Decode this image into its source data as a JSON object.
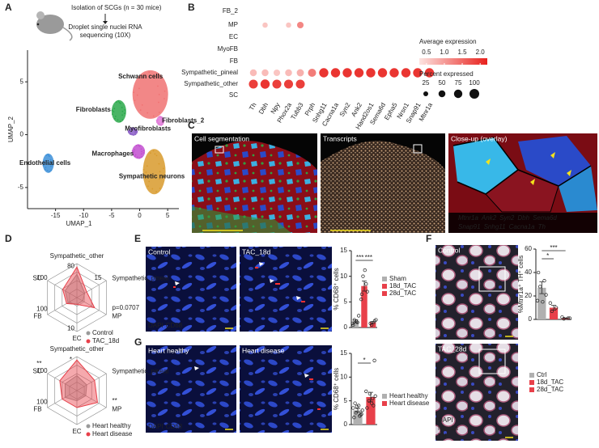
{
  "panels": {
    "letters": [
      "A",
      "B",
      "C",
      "D",
      "E",
      "F",
      "G"
    ],
    "A": {
      "header": [
        "Isolation of SCGs (n = 30 mice)",
        "Droplet single nuclei RNA",
        "sequencing (10X)"
      ]
    },
    "C": {
      "titles": [
        "Cell segmentation",
        "Transcripts",
        "Close-up (overlay)"
      ],
      "legend": [
        [
          {
            "text": "Mtnr1a",
            "color": "#f4e21c"
          },
          {
            "text": "Ank2",
            "color": "#6fa8ff"
          },
          {
            "text": "Syn2",
            "color": "#3a7a3a"
          },
          {
            "text": "Dbh",
            "color": "#d04ad0"
          },
          {
            "text": "Sema6d",
            "color": "#9fe04a"
          }
        ],
        [
          {
            "text": "Snap91",
            "color": "#f0b020"
          },
          {
            "text": "Snhg11",
            "color": "#c8e040"
          },
          {
            "text": "Cacna1a",
            "color": "#40d0e8"
          },
          {
            "text": "Th",
            "color": "#ff3030"
          }
        ]
      ]
    },
    "E": {
      "images": [
        "Control",
        "TAC_18d"
      ],
      "stains": [
        {
          "text": "DAPI",
          "color": "#7a8ae0"
        },
        {
          "text": "CD68",
          "color": "#ff3a3a"
        }
      ]
    },
    "F": {
      "images": [
        "Control",
        "TAC_28d"
      ],
      "stains": [
        {
          "text": "DAPI",
          "color": "#7a8ae0"
        },
        {
          "text": "Mtnr1a",
          "color": "#ff3a3a"
        },
        {
          "text": "TH",
          "color": "#ffffff"
        }
      ]
    },
    "G": {
      "images": [
        "Heart healthy",
        "Heart disease"
      ],
      "stains": [
        {
          "text": "DAPI",
          "color": "#7a8ae0"
        },
        {
          "text": "CD68",
          "color": "#ff3a3a"
        }
      ]
    }
  },
  "chart_data": [
    {
      "type": "scatter",
      "xlabel": "UMAP_1",
      "ylabel": "UMAP_2",
      "xlim": [
        -20,
        7
      ],
      "ylim": [
        -7,
        8
      ],
      "xticks": [
        -15,
        -10,
        -5,
        0,
        5
      ],
      "yticks": [
        -5,
        0,
        5
      ],
      "series": [
        {
          "name": "Schwann cells",
          "color": "#f07272",
          "x": [
            1.9
          ],
          "values": [
            3.8
          ]
        },
        {
          "name": "Fibroblasts",
          "color": "#2aa84a",
          "x": [
            -3.7
          ],
          "values": [
            2.2
          ]
        },
        {
          "name": "Fibroblasts_2",
          "color": "#e07ad8",
          "x": [
            3.7
          ],
          "values": [
            1.3
          ]
        },
        {
          "name": "Myofibroblasts",
          "color": "#8b5fc7",
          "x": [
            -1.2
          ],
          "values": [
            0.3
          ]
        },
        {
          "name": "Macrophages",
          "color": "#c24fd0",
          "x": [
            -0.2
          ],
          "values": [
            -1.6
          ]
        },
        {
          "name": "Endothelial cells",
          "color": "#3c8fd8",
          "x": [
            -16.3
          ],
          "values": [
            -2.7
          ]
        },
        {
          "name": "Sympathetic neurons",
          "color": "#d89a2c",
          "x": [
            2.6
          ],
          "values": [
            -3.5
          ]
        }
      ]
    },
    {
      "type": "dot",
      "rows": [
        "FB_2",
        "MP",
        "EC",
        "MyoFB",
        "FB",
        "Sympathetic_pineal",
        "Sympathetic_other",
        "SC"
      ],
      "row_colors": [
        "#222222",
        "#222222",
        "#222222",
        "#222222",
        "#222222",
        "#5aa02c",
        "#c8961e",
        "#222222"
      ],
      "genes": [
        "Th",
        "Dbh",
        "Npy",
        "Phox2a",
        "Tubb3",
        "Prph",
        "Snhg11",
        "Cacna1a",
        "Syn2",
        "Ank2",
        "Hand2os1",
        "Sema6d",
        "Epha5",
        "Nrsn1",
        "Snap91",
        "Mtnr1a"
      ],
      "expression": [
        [
          null,
          null,
          null,
          null,
          null,
          null,
          null,
          null,
          null,
          null,
          null,
          null,
          null,
          null,
          null,
          null
        ],
        [
          null,
          0.6,
          null,
          0.6,
          1.2,
          null,
          null,
          null,
          null,
          null,
          null,
          null,
          null,
          null,
          null,
          null
        ],
        [
          null,
          null,
          null,
          null,
          null,
          null,
          null,
          null,
          null,
          null,
          null,
          null,
          null,
          null,
          null,
          null
        ],
        [
          null,
          null,
          null,
          null,
          null,
          null,
          null,
          null,
          null,
          null,
          null,
          null,
          null,
          null,
          null,
          null
        ],
        [
          null,
          null,
          null,
          null,
          null,
          null,
          null,
          null,
          null,
          null,
          null,
          null,
          null,
          null,
          null,
          null
        ],
        [
          0.7,
          0.7,
          0.6,
          0.7,
          0.8,
          1.3,
          2.0,
          2.0,
          2.0,
          2.0,
          2.0,
          2.0,
          2.0,
          2.0,
          2.0,
          2.0
        ],
        [
          1.9,
          2.0,
          1.9,
          1.9,
          1.9,
          null,
          null,
          null,
          null,
          null,
          null,
          null,
          null,
          null,
          null,
          null
        ],
        [
          null,
          null,
          null,
          null,
          null,
          null,
          null,
          null,
          null,
          null,
          null,
          null,
          null,
          null,
          null,
          null
        ]
      ],
      "percent": [
        [
          null,
          null,
          null,
          null,
          null,
          null,
          null,
          null,
          null,
          null,
          null,
          null,
          null,
          null,
          null,
          null
        ],
        [
          null,
          30,
          null,
          30,
          45,
          null,
          null,
          null,
          null,
          null,
          null,
          null,
          null,
          null,
          null,
          null
        ],
        [
          null,
          null,
          null,
          null,
          null,
          null,
          null,
          null,
          null,
          null,
          null,
          null,
          null,
          null,
          null,
          null
        ],
        [
          null,
          null,
          null,
          null,
          null,
          null,
          null,
          null,
          null,
          null,
          null,
          null,
          null,
          null,
          null,
          null
        ],
        [
          null,
          null,
          null,
          null,
          null,
          null,
          null,
          null,
          null,
          null,
          null,
          null,
          null,
          null,
          null,
          null
        ],
        [
          50,
          50,
          45,
          50,
          55,
          70,
          90,
          90,
          90,
          90,
          90,
          90,
          90,
          90,
          90,
          90
        ],
        [
          85,
          90,
          85,
          85,
          85,
          null,
          null,
          null,
          null,
          null,
          null,
          null,
          null,
          null,
          null,
          null
        ],
        [
          null,
          null,
          null,
          null,
          null,
          null,
          null,
          null,
          null,
          null,
          null,
          null,
          null,
          null,
          null,
          null
        ]
      ],
      "color_title": "Average expression",
      "color_lim": [
        0.3,
        2.2
      ],
      "color_range": [
        "#fde4e1",
        "#e8201c"
      ],
      "color_ticks": [
        0.5,
        {
          "value": 1,
          "label": "1.0"
        },
        1.5,
        {
          "value": 2,
          "label": "2.0"
        }
      ],
      "size_title": "Percent expressed",
      "size_ticks": [
        25,
        50,
        75,
        100
      ]
    },
    {
      "type": "radar",
      "axes": [
        "Sympathetic_other",
        "Sympathetic_pineal",
        "MP",
        "EC",
        "FB",
        "SC"
      ],
      "axis_max": [
        80,
        15,
        10,
        10,
        100,
        100
      ],
      "show_max": [
        true,
        true,
        false,
        true,
        true,
        true
      ],
      "series": [
        {
          "name": "Control",
          "color": "#9a9a9a",
          "values": [
            55,
            4,
            2,
            2,
            30,
            40
          ]
        },
        {
          "name": "TAC_18d",
          "color": "#e8404a",
          "values": [
            72,
            5,
            6,
            2,
            35,
            48
          ]
        }
      ],
      "annotations": [
        {
          "text": "p=0.0707",
          "axis": 2
        }
      ]
    },
    {
      "type": "radar",
      "axes": [
        "Sympathetic_other",
        "Sympathetic_pineal",
        "MP",
        "EC",
        "FB",
        "SC"
      ],
      "axis_max": [
        50,
        15,
        10,
        10,
        100,
        100
      ],
      "show_max": [
        false,
        false,
        false,
        false,
        true,
        true
      ],
      "series": [
        {
          "name": "Heart healthy",
          "color": "#9a9a9a",
          "values": [
            22,
            5,
            3,
            3,
            40,
            40
          ]
        },
        {
          "name": "Heart disease",
          "color": "#e8404a",
          "values": [
            45,
            9,
            7,
            5,
            50,
            58
          ]
        }
      ],
      "annotations": [
        {
          "text": "*",
          "axis": 0
        },
        {
          "text": "**",
          "axis": 5
        },
        {
          "text": "**",
          "axis": 2
        }
      ]
    },
    {
      "type": "bar",
      "ylabel": "% CD68⁺ cells",
      "ylim": [
        0,
        15
      ],
      "yticks": [
        0,
        5,
        10,
        15
      ],
      "categories": [
        "Sham",
        "18d_TAC",
        "28d_TAC"
      ],
      "colors": [
        "#b0b0b0",
        "#e8404a",
        "#e8404a"
      ],
      "values": [
        1.2,
        8.1,
        1.0
      ],
      "errors": [
        0.3,
        1.0,
        0.2
      ],
      "points": [
        [
          0.5,
          1.0,
          1.5,
          2.3,
          0.8,
          1.2
        ],
        [
          6.5,
          8.5,
          10.0,
          7.0,
          5.5,
          11.2
        ],
        [
          0.8,
          1.3,
          0.5,
          1.5
        ]
      ],
      "significance": [
        {
          "label": "***",
          "pair": [
            0,
            1
          ]
        },
        {
          "label": "***",
          "pair": [
            1,
            2
          ]
        }
      ]
    },
    {
      "type": "bar",
      "ylabel": "%Mtnr1a⁺ TH⁺ cells",
      "ylim": [
        0,
        60
      ],
      "yticks": [
        0,
        20,
        40,
        60
      ],
      "categories": [
        "Ctrl",
        "18d_TAC",
        "28d_TAC"
      ],
      "colors": [
        "#b0b0b0",
        "#e8404a",
        "#e8404a"
      ],
      "values": [
        27,
        10,
        1
      ],
      "errors": [
        5,
        2,
        0.3
      ],
      "points": [
        [
          40,
          33,
          28,
          21,
          16,
          15
        ],
        [
          14,
          10,
          7
        ],
        [
          2,
          1,
          0.5,
          1
        ]
      ],
      "significance": [
        {
          "label": "*",
          "pair": [
            0,
            1
          ]
        },
        {
          "label": "***",
          "pair": [
            0,
            2
          ]
        }
      ]
    },
    {
      "type": "bar",
      "ylabel": "% CD68⁺ cells",
      "ylim": [
        0,
        15
      ],
      "yticks": [
        0,
        5,
        10,
        15
      ],
      "categories": [
        "Heart healthy",
        "Heart disease"
      ],
      "colors": [
        "#b0b0b0",
        "#e8404a"
      ],
      "values": [
        3.0,
        5.8
      ],
      "errors": [
        0.4,
        1.0
      ],
      "points": [
        [
          1.5,
          2,
          2.5,
          3,
          3.5,
          4,
          2.2,
          3.8,
          1.8,
          4.5
        ],
        [
          3.5,
          4,
          5,
          6,
          7,
          4.5,
          13.5,
          6.5,
          5.5
        ]
      ],
      "significance": [
        {
          "label": "*",
          "pair": [
            0,
            1
          ]
        }
      ]
    }
  ]
}
